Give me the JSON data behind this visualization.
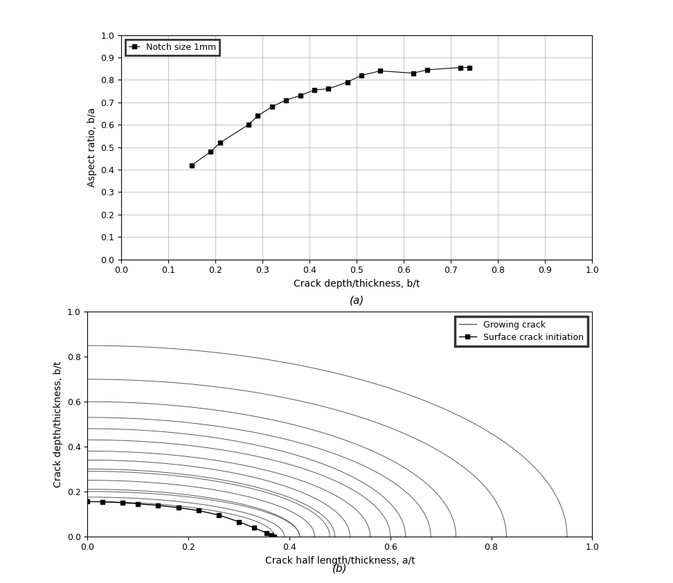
{
  "plot_a": {
    "x": [
      0.15,
      0.19,
      0.21,
      0.27,
      0.29,
      0.32,
      0.35,
      0.38,
      0.41,
      0.44,
      0.48,
      0.51,
      0.55,
      0.62,
      0.65,
      0.72,
      0.74
    ],
    "y": [
      0.42,
      0.48,
      0.52,
      0.6,
      0.64,
      0.68,
      0.71,
      0.73,
      0.755,
      0.76,
      0.79,
      0.82,
      0.84,
      0.83,
      0.845,
      0.855,
      0.855
    ],
    "xlabel": "Crack depth/thickness, b/t",
    "ylabel": "Aspect ratio, b/a",
    "xlim": [
      0.0,
      1.0
    ],
    "ylim": [
      0.0,
      1.0
    ],
    "xticks": [
      0.0,
      0.1,
      0.2,
      0.3,
      0.4,
      0.5,
      0.6,
      0.7,
      0.8,
      0.9,
      1.0
    ],
    "yticks": [
      0.0,
      0.1,
      0.2,
      0.3,
      0.4,
      0.5,
      0.6,
      0.7,
      0.8,
      0.9,
      1.0
    ],
    "legend_label": "Notch size 1mm",
    "marker": "s",
    "color": "black",
    "label_a": "(a)"
  },
  "plot_b": {
    "xlabel": "Crack half length/thickness, a/t",
    "ylabel": "Crack depth/thickness, b/t",
    "xlim": [
      0.0,
      1.0
    ],
    "ylim": [
      0.0,
      1.0
    ],
    "xticks": [
      0.0,
      0.2,
      0.4,
      0.6,
      0.8,
      1.0
    ],
    "yticks": [
      0.0,
      0.2,
      0.4,
      0.6,
      0.8,
      1.0
    ],
    "crack_b_values": [
      0.155,
      0.175,
      0.2,
      0.21,
      0.25,
      0.29,
      0.3,
      0.34,
      0.38,
      0.43,
      0.48,
      0.53,
      0.6,
      0.7,
      0.85
    ],
    "crack_a_values": [
      0.37,
      0.39,
      0.42,
      0.42,
      0.45,
      0.48,
      0.49,
      0.52,
      0.56,
      0.6,
      0.63,
      0.68,
      0.73,
      0.83,
      0.95
    ],
    "surface_x": [
      0.0,
      0.03,
      0.07,
      0.1,
      0.14,
      0.18,
      0.22,
      0.26,
      0.3,
      0.33,
      0.355,
      0.365,
      0.37
    ],
    "surface_y": [
      0.155,
      0.154,
      0.15,
      0.145,
      0.138,
      0.128,
      0.115,
      0.095,
      0.065,
      0.038,
      0.015,
      0.005,
      0.0
    ],
    "legend_growing": "Growing crack",
    "legend_surface": "Surface crack initiation",
    "label_b": "(b)"
  },
  "fig_bg": "#ffffff",
  "plot_bg": "#ffffff"
}
